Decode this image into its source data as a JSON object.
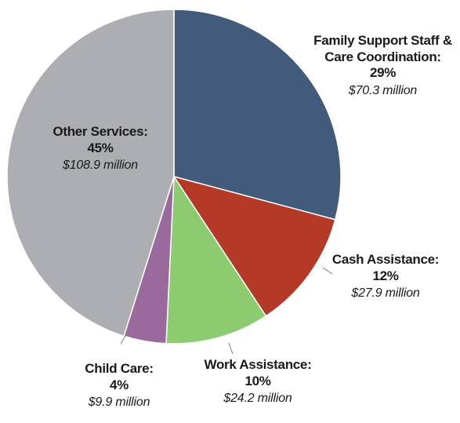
{
  "chart_data": {
    "type": "pie",
    "start_angle_deg": 0,
    "direction": "clockwise",
    "slices": [
      {
        "name": "Family Support Staff & Care Coordination:",
        "percent_label": "29%",
        "amount_label": "$70.3 million",
        "value": 70.3,
        "color": "#425b7a"
      },
      {
        "name": "Cash Assistance:",
        "percent_label": "12%",
        "amount_label": "$27.9 million",
        "value": 27.9,
        "color": "#b43a27"
      },
      {
        "name": "Work Assistance:",
        "percent_label": "10%",
        "amount_label": "$24.2 million",
        "value": 24.2,
        "color": "#8dcb71"
      },
      {
        "name": "Child Care:",
        "percent_label": "4%",
        "amount_label": "$9.9 million",
        "value": 9.9,
        "color": "#9a6a9c"
      },
      {
        "name": "Other Services:",
        "percent_label": "45%",
        "amount_label": "$108.9 million",
        "value": 108.9,
        "color": "#adaeb1"
      }
    ]
  }
}
